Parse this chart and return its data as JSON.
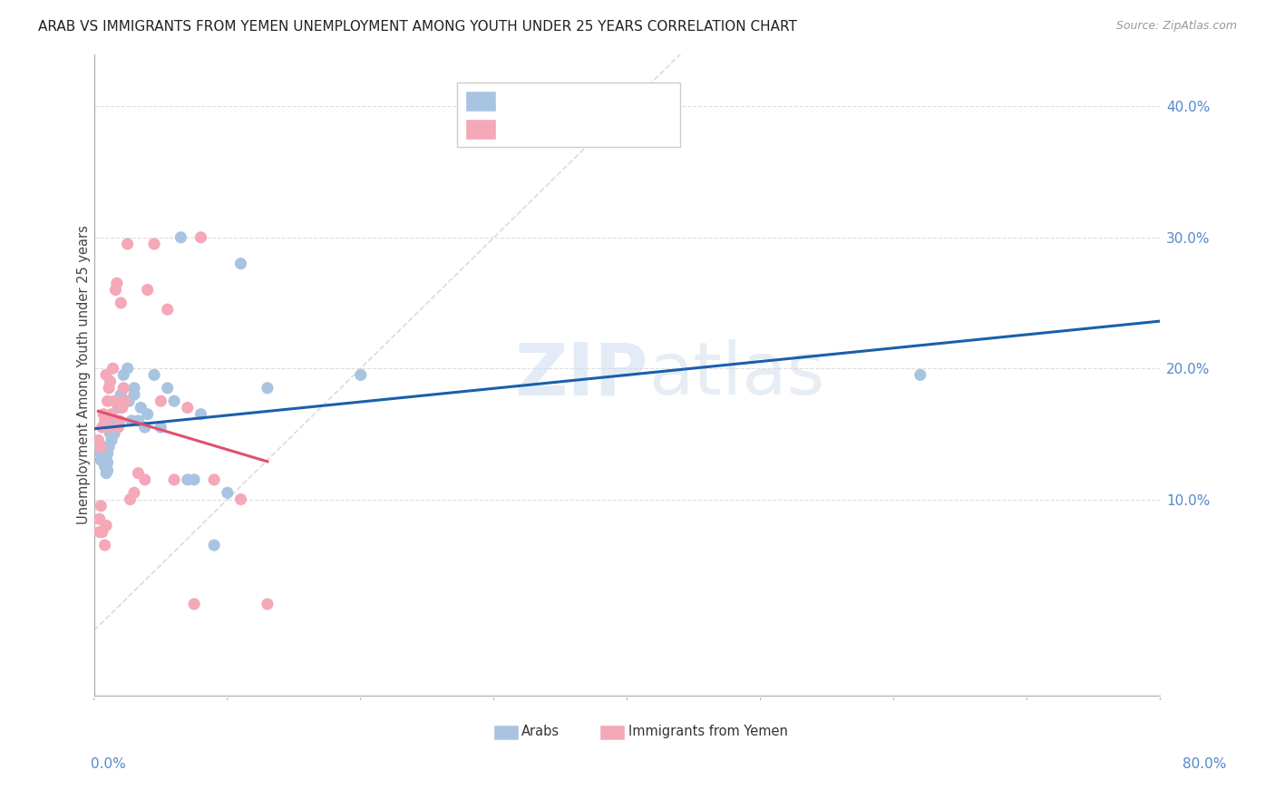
{
  "title": "ARAB VS IMMIGRANTS FROM YEMEN UNEMPLOYMENT AMONG YOUTH UNDER 25 YEARS CORRELATION CHART",
  "source": "Source: ZipAtlas.com",
  "ylabel": "Unemployment Among Youth under 25 years",
  "ylabel_right_ticks": [
    "10.0%",
    "20.0%",
    "30.0%",
    "40.0%"
  ],
  "ylabel_right_vals": [
    0.1,
    0.2,
    0.3,
    0.4
  ],
  "xlim": [
    0.0,
    0.8
  ],
  "ylim": [
    -0.05,
    0.44
  ],
  "legend_label1": "Arabs",
  "legend_label2": "Immigrants from Yemen",
  "color_arab": "#a8c4e0",
  "color_yemen": "#f4a8b8",
  "color_line_arab": "#1a5faa",
  "color_line_yemen": "#e05070",
  "color_diag": "#cccccc",
  "color_grid": "#dddddd",
  "color_tick_label": "#5588cc",
  "arab_x": [
    0.003,
    0.004,
    0.005,
    0.005,
    0.006,
    0.007,
    0.007,
    0.008,
    0.008,
    0.009,
    0.009,
    0.01,
    0.01,
    0.01,
    0.011,
    0.012,
    0.013,
    0.014,
    0.015,
    0.015,
    0.016,
    0.017,
    0.018,
    0.02,
    0.02,
    0.022,
    0.025,
    0.026,
    0.028,
    0.03,
    0.03,
    0.033,
    0.035,
    0.038,
    0.04,
    0.045,
    0.05,
    0.055,
    0.06,
    0.065,
    0.07,
    0.075,
    0.08,
    0.09,
    0.1,
    0.11,
    0.13,
    0.2,
    0.62
  ],
  "arab_y": [
    0.145,
    0.14,
    0.135,
    0.13,
    0.135,
    0.14,
    0.13,
    0.135,
    0.125,
    0.13,
    0.12,
    0.135,
    0.128,
    0.122,
    0.14,
    0.15,
    0.145,
    0.155,
    0.155,
    0.15,
    0.16,
    0.175,
    0.17,
    0.18,
    0.175,
    0.195,
    0.2,
    0.175,
    0.16,
    0.185,
    0.18,
    0.16,
    0.17,
    0.155,
    0.165,
    0.195,
    0.155,
    0.185,
    0.175,
    0.3,
    0.115,
    0.115,
    0.165,
    0.065,
    0.105,
    0.28,
    0.185,
    0.195,
    0.195
  ],
  "yemen_x": [
    0.003,
    0.004,
    0.004,
    0.005,
    0.005,
    0.006,
    0.006,
    0.007,
    0.008,
    0.008,
    0.009,
    0.009,
    0.01,
    0.01,
    0.011,
    0.012,
    0.013,
    0.014,
    0.015,
    0.016,
    0.017,
    0.018,
    0.019,
    0.02,
    0.021,
    0.022,
    0.023,
    0.025,
    0.027,
    0.03,
    0.033,
    0.038,
    0.04,
    0.045,
    0.05,
    0.055,
    0.06,
    0.07,
    0.075,
    0.08,
    0.09,
    0.11,
    0.13
  ],
  "yemen_y": [
    0.145,
    0.085,
    0.075,
    0.14,
    0.095,
    0.155,
    0.075,
    0.165,
    0.16,
    0.065,
    0.195,
    0.08,
    0.175,
    0.155,
    0.185,
    0.19,
    0.165,
    0.2,
    0.175,
    0.26,
    0.265,
    0.155,
    0.16,
    0.25,
    0.17,
    0.185,
    0.175,
    0.295,
    0.1,
    0.105,
    0.12,
    0.115,
    0.26,
    0.295,
    0.175,
    0.245,
    0.115,
    0.17,
    0.02,
    0.3,
    0.115,
    0.1,
    0.02
  ]
}
